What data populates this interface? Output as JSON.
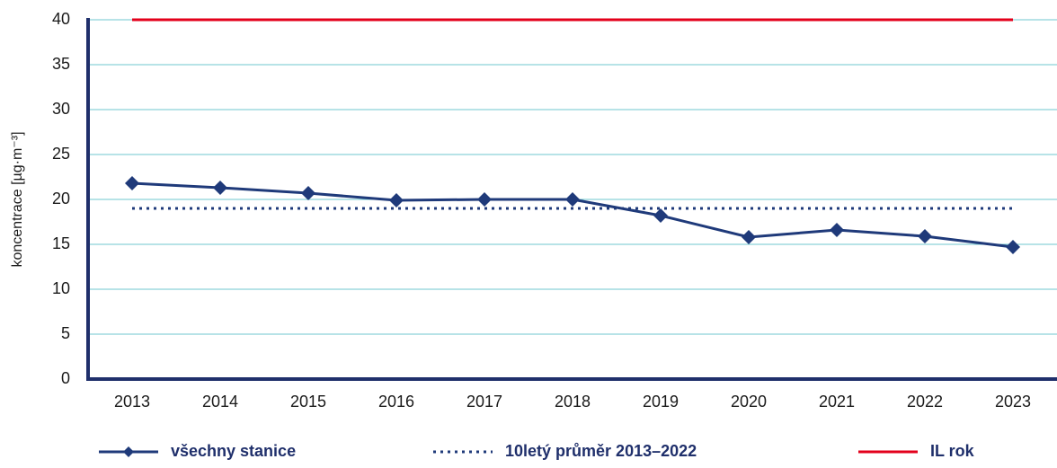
{
  "chart_data": {
    "type": "line",
    "y_label": "koncentrace [µg·m⁻³]",
    "categories": [
      "2013",
      "2014",
      "2015",
      "2016",
      "2017",
      "2018",
      "2019",
      "2020",
      "2021",
      "2022",
      "2023"
    ],
    "series": [
      {
        "name": "všechny stanice",
        "color": "#1f3a7a",
        "marker": "diamond",
        "dash": "solid",
        "values": [
          21.8,
          21.3,
          20.7,
          19.9,
          20.0,
          20.0,
          18.2,
          15.8,
          16.6,
          15.9,
          14.7
        ]
      },
      {
        "name": "10letý průměr 2013–2022",
        "color": "#1f3a7a",
        "marker": "none",
        "dash": "dotted",
        "values": [
          19,
          19,
          19,
          19,
          19,
          19,
          19,
          19,
          19,
          19,
          19
        ]
      },
      {
        "name": "IL rok",
        "color": "#e3001b",
        "marker": "none",
        "dash": "solid",
        "values": [
          40,
          40,
          40,
          40,
          40,
          40,
          40,
          40,
          40,
          40,
          40
        ]
      }
    ],
    "ylim": [
      0,
      40
    ],
    "yticks": [
      0,
      5,
      10,
      15,
      20,
      25,
      30,
      35,
      40
    ],
    "grid": true,
    "legend": "bottom"
  }
}
